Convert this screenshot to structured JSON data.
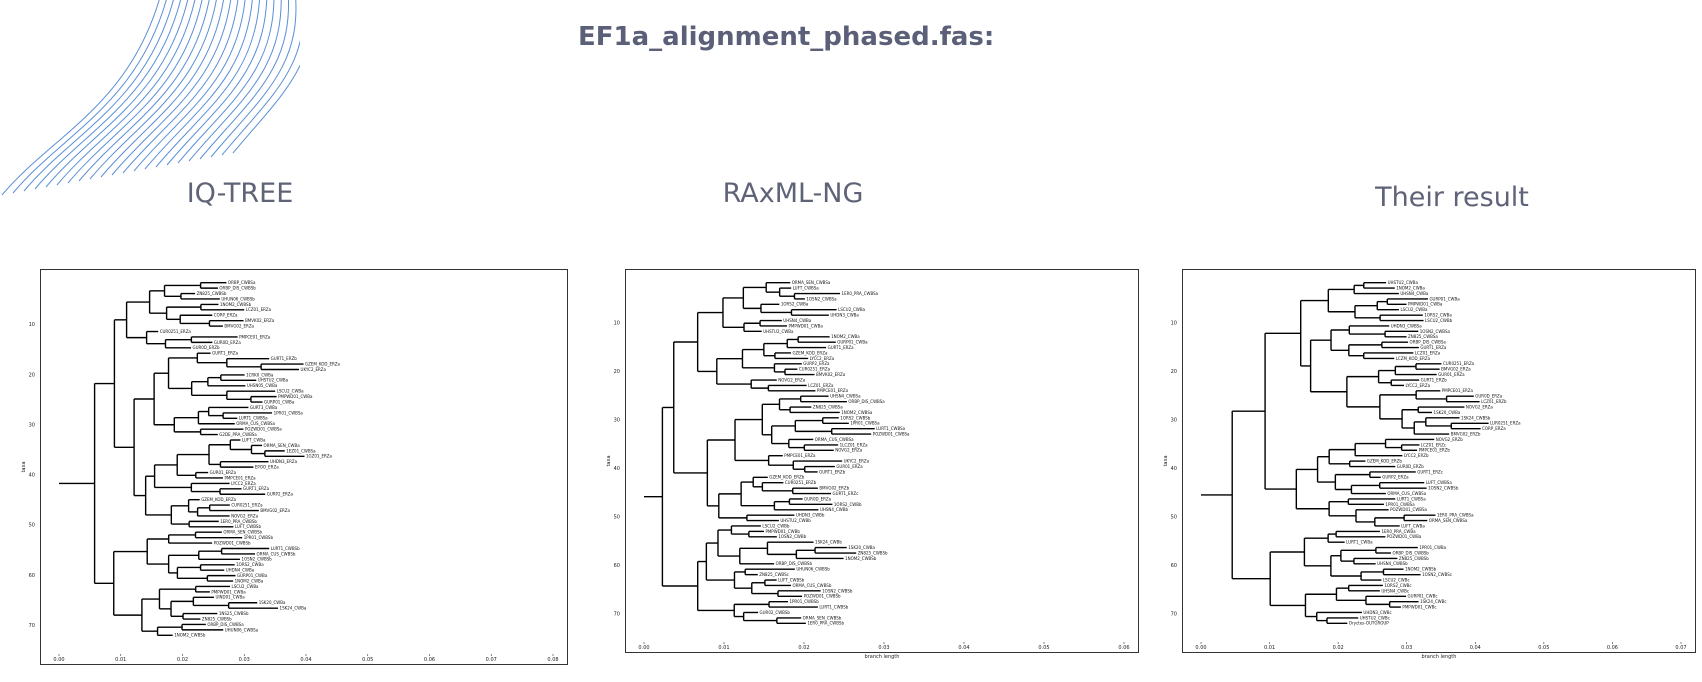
{
  "slide": {
    "title": "EF1a_alignment_phased.fas:",
    "accent_color": "#5b8fd6",
    "text_color": "#5b6078"
  },
  "panels": [
    {
      "label": "IQ-TREE",
      "x_ticks": [
        "0.00",
        "0.01",
        "0.02",
        "0.03",
        "0.04",
        "0.05",
        "0.06",
        "0.07",
        "0.08"
      ],
      "y_ticks": [
        "10",
        "20",
        "30",
        "40",
        "50",
        "60",
        "70"
      ],
      "y_axis_label": "taxa",
      "x_axis_label": "",
      "leaves": [
        "ORBP_CWBSa",
        "ORBP_DIS_CWBSb",
        "ZN825_CWBSb",
        "UHUN06_CWBSb",
        "1NOM2_CWBSb",
        "LCZ01_ERZa",
        "CORP_ERZa",
        "BMVK02_ERZa",
        "BMVG02_ERZa",
        "CUR0251_ERZa",
        "PMPCE01_ERZa",
        "GUR0D_ERZa",
        "GUR0D_ERZb",
        "GURT1_ERZa",
        "GURT1_ERZb",
        "GZEM_KOD_ERZa",
        "UKYC2_ERZa",
        "1CRK0_CWBa",
        "UHSTU2_CWBa",
        "UHSN05_CWBa",
        "LSCU2_CWBa",
        "PMPWD01_CWBa",
        "GURP01_CWBa",
        "GURT3_CWBa",
        "1PR01_CWBSa",
        "LURT1_CWBSa",
        "ORMA_CUS_CWBSa",
        "POZWD01_CWBSa",
        "G2DE_PRA_CWBSa",
        "LUFT_CWBa",
        "ORMA_SEN_CWBa",
        "1EZ01_CWBSa",
        "1GZ01_ERZa",
        "UHDN3_ERZa",
        "EPOO_ERZa",
        "GUR01_ERZa",
        "PMPCE01_ERZa",
        "LYCC2_ERZa",
        "GURT1_ERZa",
        "GURP2_ERZa",
        "GZEM_KOD_ERZa",
        "CUR0251_ERZa",
        "BMVG02_ERZa",
        "NOVG2_ERZa",
        "1ER0_PRA_CWBSb",
        "LUFT_CWBSb",
        "ORMA_SEN_CWBSb",
        "1PR01_CWBSb",
        "POZWD01_CWBSb",
        "LURT1_CWBSb",
        "ORMA_CUS_CWBSb",
        "1OSN2_CWBSb",
        "1ORS2_CWBa",
        "UHDN4_CWBa",
        "GURP01_CWBa",
        "1NOM2_CWBa",
        "LSCU2_CWBa",
        "PMPWD01_CWBa",
        "UIND01_CWBa",
        "1SK20_CWBa",
        "1SK24_CWBa",
        "1NS25_CWBSb",
        "ZN825_CWBSb",
        "ORBP_DIS_CWBSa",
        "UHUN06_CWBSa",
        "1NOM2_CWBSb"
      ]
    },
    {
      "label": "RAxML-NG",
      "x_ticks": [
        "0.00",
        "0.01",
        "0.02",
        "0.03",
        "0.04",
        "0.05",
        "0.06"
      ],
      "y_ticks": [
        "10",
        "20",
        "30",
        "40",
        "50",
        "60",
        "70"
      ],
      "y_axis_label": "taxa",
      "x_axis_label": "branch length",
      "leaves": [
        "ORMA_SEN_CWBSa",
        "LUFT_CWBSa",
        "1ER0_PRA_CWBSa",
        "1OSN2_CWBSa",
        "1ORS2_CWBa",
        "LSCU2_CWBa",
        "UHDN3_CWBa",
        "UHSN4_CWBa",
        "PMPWD01_CWBa",
        "UHSTU2_CWBa",
        "1NOM2_CWBa",
        "GURP01_CWBa",
        "GURT1_ERZa",
        "GZEM_KOD_ERZa",
        "LYCC2_ERZa",
        "GURP2_ERZa",
        "CUR0251_ERZa",
        "BMVK02_ERZa",
        "NOVG2_ERZa",
        "LCZ01_ERZa",
        "PMPCE01_ERZa",
        "UHSN4_CWBSa",
        "ORBP_DIS_CWBSa",
        "ZN825_CWBSa",
        "1NOM2_CWBSa",
        "1ORS2_CWBSb",
        "1PR01_CWBSa",
        "LURT1_CWBSa",
        "POZWD01_CWBSa",
        "ORMA_CUS_CWBSa",
        "1LCZ01_ERZa",
        "NOVG2_ERZa",
        "PMPCE01_ERZa",
        "UKYC2_ERZa",
        "GUR01_ERZa",
        "GURT1_ERZb",
        "GZEM_KOD_ERZb",
        "CUR0251_ERZb",
        "BMVG02_ERZb",
        "GURT1_ERZc",
        "GUR0D_ERZa",
        "1ORS2_CWBb",
        "UHSN4_CWBb",
        "UHDN3_CWBb",
        "UHSTU2_CWBb",
        "LSCU2_CWBb",
        "PMPWD01_CWBb",
        "1OSN2_CWBb",
        "1SK24_CWBb",
        "1SK20_CWBa",
        "ZN825_CWBSb",
        "1NOM2_CWBSb",
        "ORBP_DIS_CWBSb",
        "UHUN06_CWBSb",
        "ZN825_CWBSc",
        "LUFT_CWBSb",
        "ORMA_CUS_CWBSb",
        "1OSN2_CWBSb",
        "POZWD01_CWBSb",
        "1PR01_CWBSb",
        "LURT1_CWBSb",
        "GUR02_CWBSb",
        "ORMA_SEN_CWBSb",
        "1ER0_PRA_CWBSb"
      ]
    },
    {
      "label": "Their result",
      "x_ticks": [
        "0.00",
        "0.01",
        "0.02",
        "0.03",
        "0.04",
        "0.05",
        "0.06",
        "0.07"
      ],
      "y_ticks": [
        "10",
        "20",
        "30",
        "40",
        "50",
        "60",
        "70"
      ],
      "y_axis_label": "taxa",
      "x_axis_label": "branch length",
      "leaves": [
        "UHSTU2_CWBa",
        "1NOM2_CWBa",
        "UHSN4_CWBa",
        "GURP01_CWBa",
        "PMPWD01_CWBa",
        "LSCU2_CWBa",
        "1ORS2_CWBa",
        "LSCU2_CWBb",
        "UHDN3_CWBSa",
        "1OSN2_CWBSa",
        "ZN825_CWBSa",
        "ORBP_DIS_CWBSa",
        "GURT1_ERZa",
        "LCZ01_ERZa",
        "LCZM_KOD_ERZa",
        "CUR0251_ERZa",
        "BMVG02_ERZa",
        "GUR01_ERZa",
        "GURT1_ERZb",
        "LYCC2_ERZa",
        "PMPCE01_ERZa",
        "GUR0D_ERZa",
        "LCZ01_ERZb",
        "NOVG2_ERZa",
        "1SK20_CWBa",
        "1SK24_CWBSb",
        "LUR0251_ERZa",
        "CORP_ERZa",
        "BMVG02_ERZb",
        "NOVG2_ERZb",
        "LCZ01_ERZc",
        "PMPCE01_ERZb",
        "LYCC2_ERZb",
        "GZEM_KOD_ERZb",
        "GUR0D_ERZb",
        "GURT1_ERZc",
        "GURP2_ERZa",
        "LUFT_CWBSa",
        "1OSN2_CWBSb",
        "ORMA_CUS_CWBSa",
        "LURT1_CWBSa",
        "1PR01_CWBSa",
        "POZWD01_CWBSa",
        "1ER0_PRA_CWBSa",
        "ORMA_SEN_CWBSa",
        "LUFT_CWBa",
        "1ER0_PRA_CWBa",
        "POZWD01_CWBa",
        "LURT1_CWBa",
        "1PR01_CWBa",
        "ORBP_DIS_CWBSb",
        "ZN825_CWBSb",
        "UHSN4_CWBSb",
        "1NOM2_CWBSb",
        "1OSN2_CWBSc",
        "LSCU2_CWBc",
        "1ORS2_CWBc",
        "UHSN4_CWBc",
        "GURP01_CWBc",
        "1SK24_CWBc",
        "PMPWD01_CWBc",
        "UHDN3_CWBc",
        "UHSTU2_CWBc",
        "Oryctes-OUTGROUP"
      ]
    }
  ]
}
